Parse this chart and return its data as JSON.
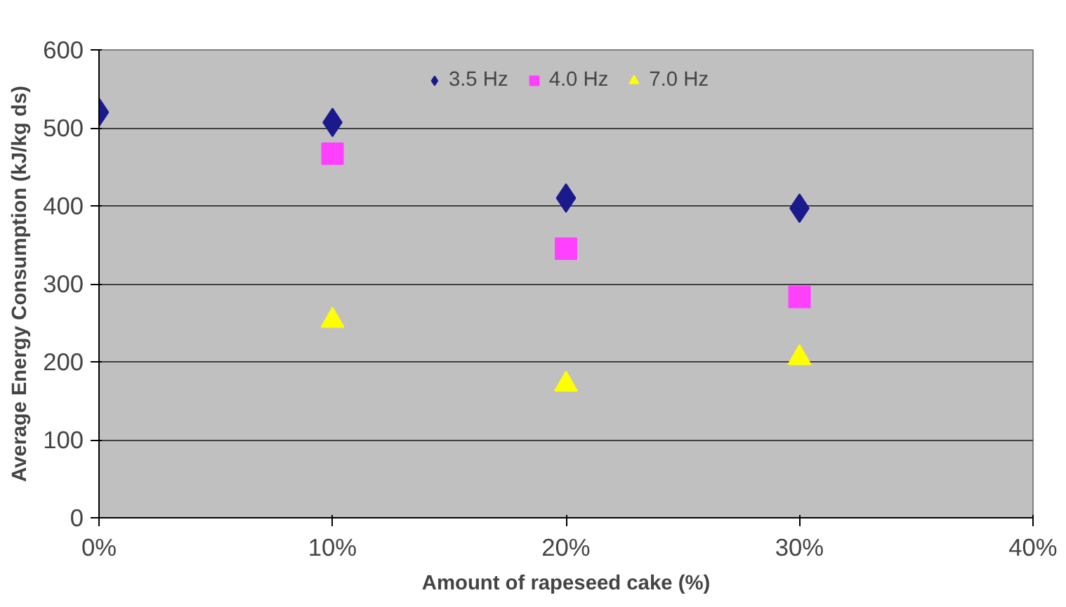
{
  "chart_data": {
    "type": "scatter",
    "xlabel": "Amount of rapeseed cake (%)",
    "ylabel": "Average Energy Consumption (kJ/kg ds)",
    "x": [
      0,
      10,
      20,
      30
    ],
    "series": [
      {
        "name": "3.5 Hz",
        "color": "#1a1a8c",
        "marker": "diamond",
        "values": [
          520,
          507,
          410,
          397
        ]
      },
      {
        "name": "4.0 Hz",
        "color": "#ff40ff",
        "marker": "square",
        "values": [
          null,
          467,
          345,
          283
        ]
      },
      {
        "name": "7.0 Hz",
        "color": "#ffff00",
        "marker": "triangle",
        "values": [
          null,
          253,
          171,
          205
        ]
      }
    ],
    "xlim": [
      0,
      40
    ],
    "xticks": [
      {
        "value": 0,
        "label": "0%"
      },
      {
        "value": 10,
        "label": "10%"
      },
      {
        "value": 20,
        "label": "20%"
      },
      {
        "value": 30,
        "label": "30%"
      },
      {
        "value": 40,
        "label": "40%"
      }
    ],
    "ylim": [
      0,
      600
    ],
    "yticks": [
      0,
      100,
      200,
      300,
      400,
      500,
      600
    ],
    "grid": "y",
    "legend": "top"
  }
}
